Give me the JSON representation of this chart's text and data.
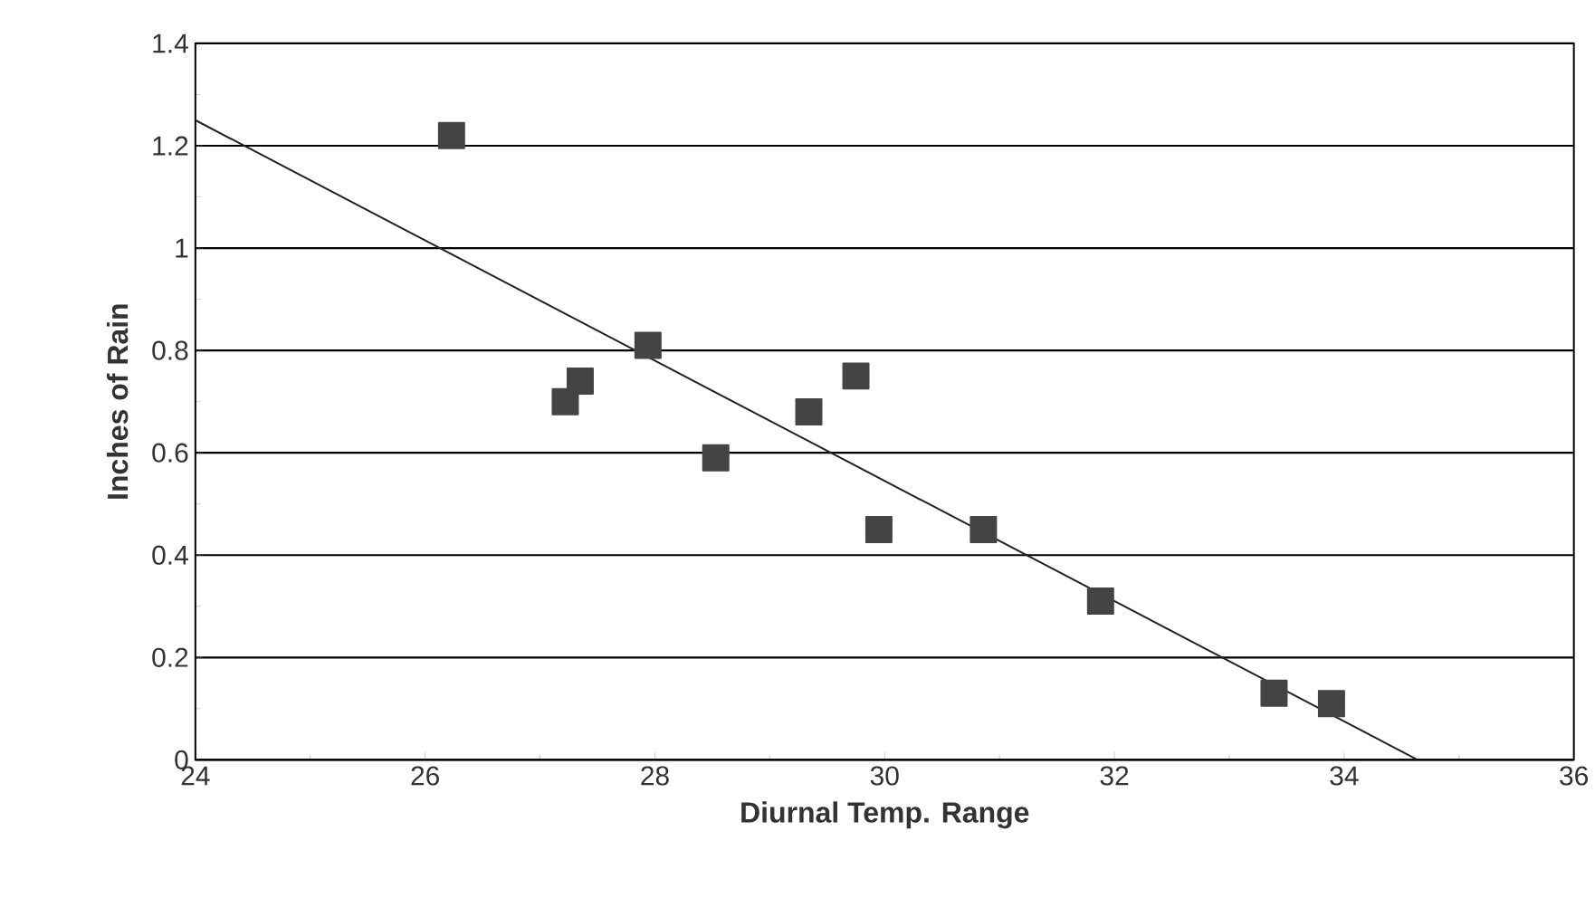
{
  "chart_data": {
    "type": "scatter",
    "xlabel": "Diurnal Temp. Range",
    "ylabel": "Inches of Rain",
    "xlim": [
      24,
      36
    ],
    "ylim": [
      0,
      1.4
    ],
    "xticks": [
      24,
      26,
      28,
      30,
      32,
      34,
      36
    ],
    "yticks": [
      0,
      0.2,
      0.4,
      0.6,
      0.8,
      1,
      1.2,
      1.4
    ],
    "grid": "y",
    "marker": "square",
    "series": [
      {
        "color": "#444444",
        "x": [
          26.23,
          27.22,
          27.35,
          27.94,
          28.53,
          29.34,
          29.75,
          29.95,
          30.86,
          31.88,
          33.39,
          33.89
        ],
        "values": [
          1.22,
          0.7,
          0.74,
          0.81,
          0.59,
          0.68,
          0.75,
          0.45,
          0.45,
          0.31,
          0.13,
          0.11
        ]
      },
      {
        "type": "line",
        "color": "#222222",
        "marker": "none",
        "x": [
          24,
          34.64
        ],
        "values": [
          1.25,
          0
        ]
      }
    ]
  }
}
